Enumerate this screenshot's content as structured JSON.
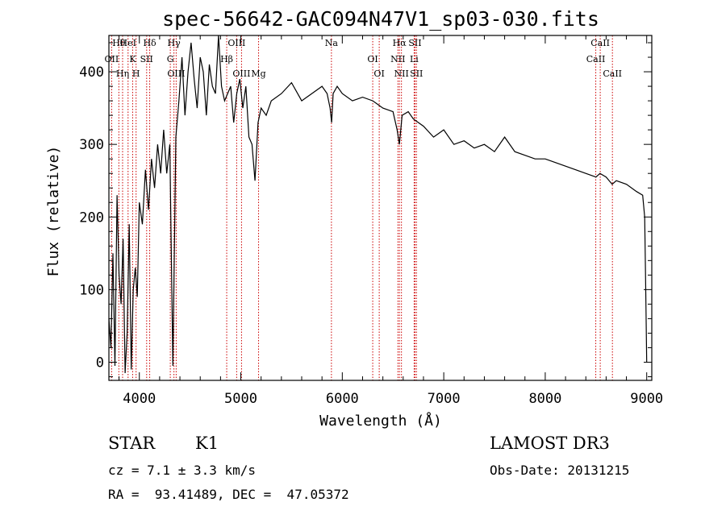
{
  "chart_data": {
    "type": "line",
    "title": "spec-56642-GAC094N47V1_sp03-030.fits",
    "xlabel": "Wavelength (Å)",
    "ylabel": "Flux (relative)",
    "xlim": [
      3700,
      9050
    ],
    "ylim": [
      -25,
      450
    ],
    "x_ticks": [
      4000,
      5000,
      6000,
      7000,
      8000,
      9000
    ],
    "y_ticks": [
      0,
      100,
      200,
      300,
      400
    ],
    "x_tick_labels": [
      "4000",
      "5000",
      "6000",
      "7000",
      "8000",
      "9000"
    ],
    "y_tick_labels": [
      "0",
      "100",
      "200",
      "300",
      "400"
    ],
    "series": [
      {
        "name": "flux",
        "x": [
          3700,
          3720,
          3740,
          3760,
          3780,
          3800,
          3820,
          3840,
          3860,
          3880,
          3900,
          3920,
          3940,
          3960,
          3980,
          4000,
          4030,
          4060,
          4090,
          4120,
          4150,
          4180,
          4210,
          4240,
          4270,
          4300,
          4330,
          4360,
          4390,
          4420,
          4450,
          4480,
          4510,
          4540,
          4570,
          4600,
          4630,
          4660,
          4690,
          4720,
          4750,
          4780,
          4810,
          4840,
          4870,
          4900,
          4930,
          4960,
          4990,
          5020,
          5050,
          5080,
          5110,
          5140,
          5170,
          5200,
          5250,
          5300,
          5400,
          5500,
          5600,
          5700,
          5800,
          5850,
          5880,
          5895,
          5910,
          5950,
          6000,
          6100,
          6200,
          6300,
          6400,
          6500,
          6540,
          6563,
          6590,
          6650,
          6700,
          6750,
          6800,
          6900,
          7000,
          7100,
          7200,
          7300,
          7400,
          7500,
          7600,
          7700,
          7800,
          7900,
          8000,
          8100,
          8200,
          8300,
          8400,
          8500,
          8540,
          8600,
          8660,
          8700,
          8800,
          8900,
          8960,
          8980,
          8990,
          9000
        ],
        "values": [
          60,
          20,
          150,
          -5,
          230,
          120,
          80,
          170,
          -15,
          40,
          190,
          -10,
          100,
          130,
          90,
          220,
          190,
          265,
          210,
          280,
          240,
          300,
          260,
          320,
          260,
          300,
          -5,
          310,
          360,
          420,
          340,
          400,
          440,
          390,
          350,
          420,
          400,
          340,
          410,
          380,
          370,
          450,
          380,
          360,
          370,
          380,
          330,
          370,
          390,
          350,
          380,
          310,
          300,
          250,
          330,
          350,
          340,
          360,
          370,
          385,
          360,
          370,
          380,
          370,
          350,
          330,
          370,
          380,
          370,
          360,
          365,
          360,
          350,
          345,
          320,
          300,
          340,
          345,
          335,
          330,
          325,
          310,
          320,
          300,
          305,
          295,
          300,
          290,
          310,
          290,
          285,
          280,
          280,
          275,
          270,
          265,
          260,
          255,
          260,
          255,
          245,
          250,
          245,
          235,
          230,
          200,
          100,
          0
        ]
      }
    ],
    "lines": [
      {
        "name": "Hθ",
        "wavelength": 3798
      },
      {
        "name": "OII",
        "wavelength": 3727
      },
      {
        "name": "Hη",
        "wavelength": 3835
      },
      {
        "name": "HeI",
        "wavelength": 3889
      },
      {
        "name": "K",
        "wavelength": 3934
      },
      {
        "name": "H",
        "wavelength": 3968
      },
      {
        "name": "Hδ",
        "wavelength": 4102
      },
      {
        "name": "SII",
        "wavelength": 4072
      },
      {
        "name": "OIII",
        "wavelength": 4363
      },
      {
        "name": "Hγ",
        "wavelength": 4341
      },
      {
        "name": "G",
        "wavelength": 4305
      },
      {
        "name": "OIII",
        "wavelength": 5007
      },
      {
        "name": "OIII",
        "wavelength": 4959
      },
      {
        "name": "Hβ",
        "wavelength": 4861
      },
      {
        "name": "Mg",
        "wavelength": 5175
      },
      {
        "name": "Na",
        "wavelength": 5893
      },
      {
        "name": "OI",
        "wavelength": 6300
      },
      {
        "name": "OI",
        "wavelength": 6364
      },
      {
        "name": "Hα",
        "wavelength": 6563
      },
      {
        "name": "NII",
        "wavelength": 6548
      },
      {
        "name": "NII",
        "wavelength": 6583
      },
      {
        "name": "SII",
        "wavelength": 6717
      },
      {
        "name": "Li",
        "wavelength": 6708
      },
      {
        "name": "SII",
        "wavelength": 6731
      },
      {
        "name": "CaII",
        "wavelength": 8542
      },
      {
        "name": "CaII",
        "wavelength": 8498
      },
      {
        "name": "CaII",
        "wavelength": 8662
      }
    ]
  },
  "info": {
    "class": "STAR",
    "subclass": "K1",
    "survey": "LAMOST DR3",
    "cz": "cz = 7.1 ± 3.3 km/s",
    "obs_date": "Obs-Date: 20131215",
    "coords": "RA =  93.41489, DEC =  47.05372"
  },
  "colors": {
    "spectrum": "#000000",
    "line_marker": "#cc0000",
    "axis": "#000000"
  }
}
